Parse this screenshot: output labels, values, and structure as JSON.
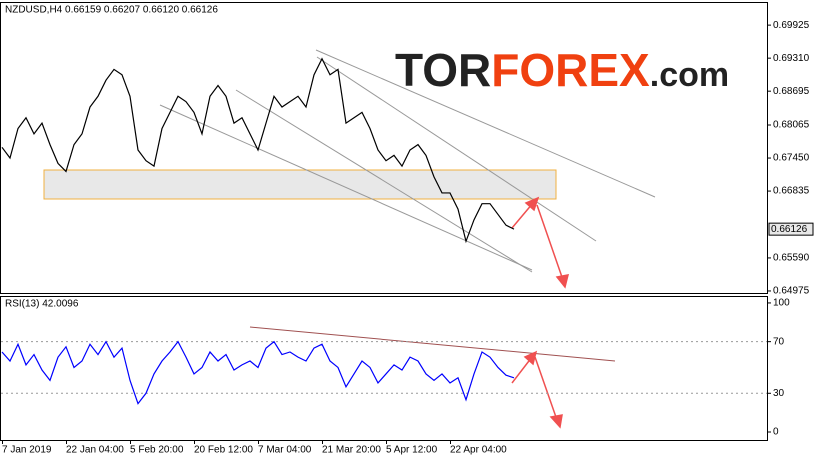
{
  "chart_data": [
    {
      "type": "line",
      "title": "NZDUSD,H4  0.66159 0.66207 0.66120 0.66126",
      "series": [
        {
          "name": "NZDUSD",
          "color": "#000000",
          "values": [
            0.6765,
            0.6745,
            0.68,
            0.682,
            0.679,
            0.681,
            0.677,
            0.6735,
            0.672,
            0.677,
            0.679,
            0.684,
            0.686,
            0.689,
            0.691,
            0.69,
            0.686,
            0.676,
            0.674,
            0.673,
            0.68,
            0.683,
            0.686,
            0.685,
            0.683,
            0.679,
            0.686,
            0.688,
            0.686,
            0.681,
            0.682,
            0.679,
            0.676,
            0.681,
            0.686,
            0.684,
            0.685,
            0.686,
            0.684,
            0.69,
            0.693,
            0.69,
            0.691,
            0.681,
            0.682,
            0.683,
            0.68,
            0.676,
            0.674,
            0.675,
            0.673,
            0.676,
            0.677,
            0.675,
            0.671,
            0.668,
            0.668,
            0.665,
            0.659,
            0.663,
            0.666,
            0.666,
            0.664,
            0.662,
            0.66126
          ]
        }
      ],
      "last_price": 0.66126,
      "ylim": [
        0.64937,
        0.70337
      ],
      "yticks": [
        {
          "value": 0.64975,
          "label": "0.64975"
        },
        {
          "value": 0.6559,
          "label": "0.65590"
        },
        {
          "value": 0.66835,
          "label": "0.66835"
        },
        {
          "value": 0.6745,
          "label": "0.67450"
        },
        {
          "value": 0.68065,
          "label": "0.68065"
        },
        {
          "value": 0.68695,
          "label": "0.68695"
        },
        {
          "value": 0.6931,
          "label": "0.69310"
        },
        {
          "value": 0.69925,
          "label": "0.69925"
        }
      ],
      "logo": {
        "part1": "TOR",
        "part2": "FOREX",
        "part3": ".com"
      }
    },
    {
      "type": "line",
      "title": "RSI(13) 42.0096",
      "categories": [
        "7 Jan 2019",
        null,
        null,
        null,
        null,
        null,
        null,
        null,
        "22 Jan 04:00",
        null,
        null,
        null,
        null,
        null,
        null,
        null,
        "5 Feb 20:00",
        null,
        null,
        null,
        null,
        null,
        null,
        null,
        "20 Feb 12:00",
        null,
        null,
        null,
        null,
        null,
        null,
        null,
        "7 Mar 04:00",
        null,
        null,
        null,
        null,
        null,
        null,
        null,
        "21 Mar 20:00",
        null,
        null,
        null,
        null,
        null,
        null,
        null,
        "5 Apr 12:00",
        null,
        null,
        null,
        null,
        null,
        null,
        null,
        "22 Apr 04:00",
        null,
        null,
        null,
        null,
        null,
        null,
        null,
        null
      ],
      "series": [
        {
          "name": "RSI(13)",
          "color": "#0000ff",
          "values": [
            62,
            55,
            68,
            52,
            60,
            48,
            40,
            58,
            66,
            50,
            55,
            68,
            60,
            70,
            58,
            65,
            40,
            22,
            30,
            45,
            55,
            62,
            70,
            58,
            45,
            50,
            62,
            55,
            60,
            48,
            52,
            55,
            50,
            65,
            70,
            60,
            62,
            58,
            55,
            65,
            68,
            55,
            50,
            35,
            45,
            55,
            50,
            38,
            45,
            52,
            48,
            58,
            55,
            45,
            40,
            45,
            38,
            42,
            25,
            45,
            62,
            58,
            50,
            44,
            42.0096
          ]
        }
      ],
      "ylim": [
        -6.2,
        104.6
      ],
      "yticks": [
        0,
        30,
        70,
        100
      ]
    }
  ]
}
